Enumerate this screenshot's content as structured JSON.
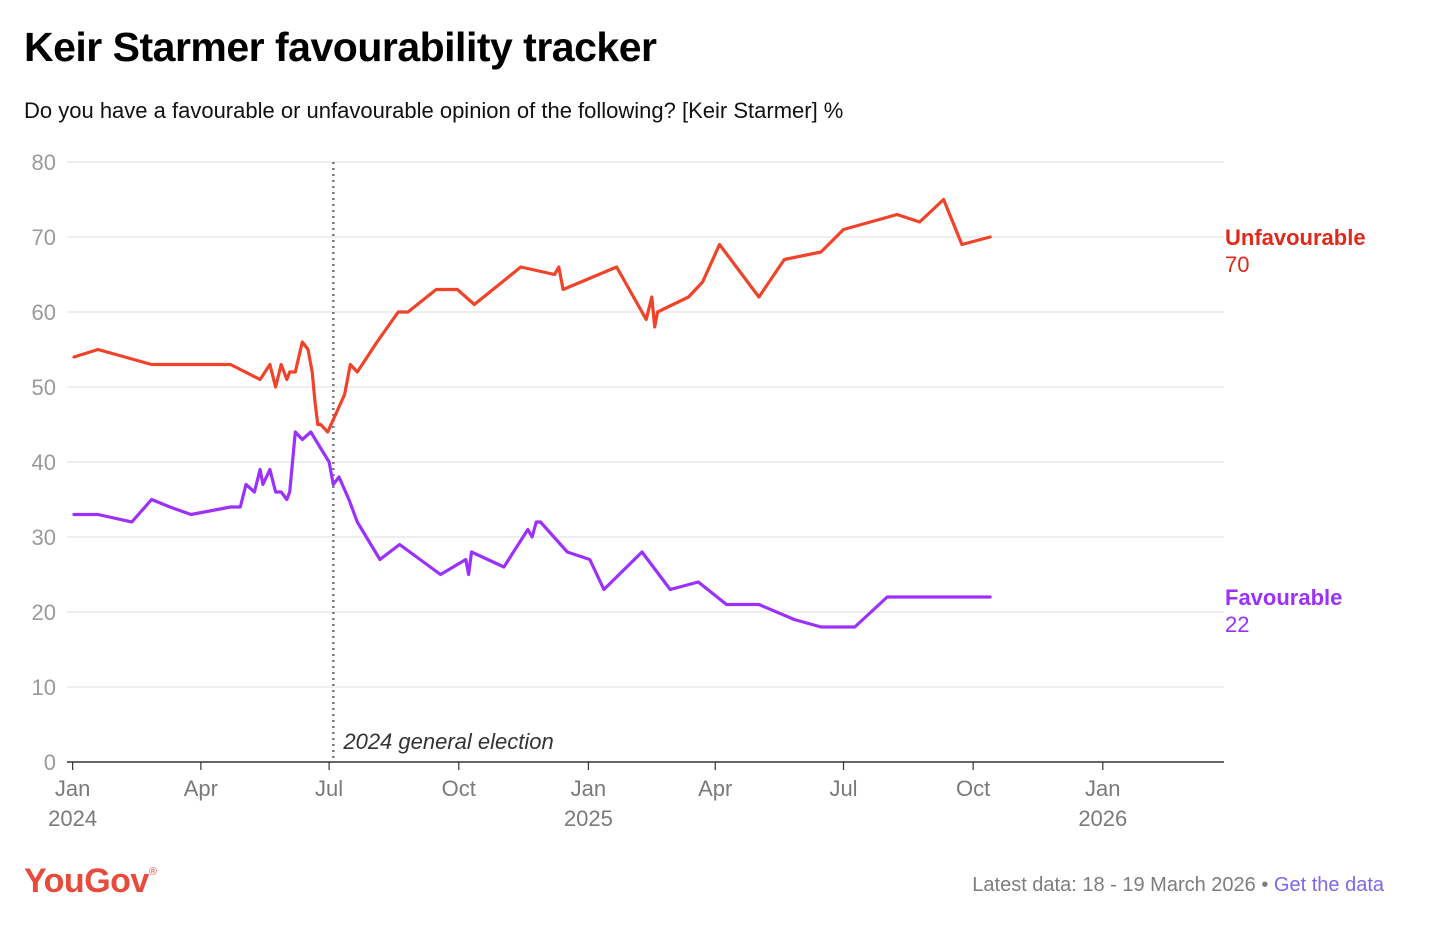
{
  "header": {
    "title": "Keir Starmer favourability tracker",
    "subtitle": "Do you have a favourable or unfavourable opinion of the following? [Keir Starmer] %"
  },
  "footer": {
    "logo": "YouGov",
    "logo_mark": "®",
    "latest_data": "Latest data: 18 - 19 March 2026",
    "separator": "•",
    "get_data_link": "Get the data"
  },
  "chart_data": {
    "type": "line",
    "title": "Keir Starmer favourability tracker",
    "xlabel": "",
    "ylabel": "%",
    "ylim": [
      0,
      80
    ],
    "xlim": [
      "2023-12-28",
      "2026-03-28"
    ],
    "yticks": [
      0,
      10,
      20,
      30,
      40,
      50,
      60,
      70,
      80
    ],
    "xticks": [
      {
        "date": "2024-01-01",
        "label": "Jan",
        "year": "2024"
      },
      {
        "date": "2024-04-01",
        "label": "Apr",
        "year": ""
      },
      {
        "date": "2024-07-01",
        "label": "Jul",
        "year": ""
      },
      {
        "date": "2024-10-01",
        "label": "Oct",
        "year": ""
      },
      {
        "date": "2025-01-01",
        "label": "Jan",
        "year": "2025"
      },
      {
        "date": "2025-04-01",
        "label": "Apr",
        "year": ""
      },
      {
        "date": "2025-07-01",
        "label": "Jul",
        "year": ""
      },
      {
        "date": "2025-10-01",
        "label": "Oct",
        "year": ""
      },
      {
        "date": "2026-01-01",
        "label": "Jan",
        "year": "2026"
      }
    ],
    "grid": true,
    "annotations": [
      {
        "date": "2024-07-04",
        "label": "2024 general election",
        "style": "dotted-vertical-line"
      }
    ],
    "colors": {
      "Unfavourable": "#f0432a",
      "Favourable": "#9b30ff",
      "end_label_unfav": "#e0281b"
    },
    "series": [
      {
        "name": "Unfavourable",
        "end_label": "Unfavourable",
        "end_value": "70",
        "points": [
          [
            "2024-01-02",
            54
          ],
          [
            "2024-01-19",
            55
          ],
          [
            "2024-02-26",
            53
          ],
          [
            "2024-03-25",
            53
          ],
          [
            "2024-04-22",
            53
          ],
          [
            "2024-05-13",
            51
          ],
          [
            "2024-05-20",
            53
          ],
          [
            "2024-05-24",
            50
          ],
          [
            "2024-05-28",
            53
          ],
          [
            "2024-06-01",
            51
          ],
          [
            "2024-06-03",
            52
          ],
          [
            "2024-06-07",
            52
          ],
          [
            "2024-06-12",
            56
          ],
          [
            "2024-06-16",
            55
          ],
          [
            "2024-06-17",
            54
          ],
          [
            "2024-06-19",
            52
          ],
          [
            "2024-06-21",
            48
          ],
          [
            "2024-06-23",
            45
          ],
          [
            "2024-06-25",
            45
          ],
          [
            "2024-06-30",
            44
          ],
          [
            "2024-07-12",
            49
          ],
          [
            "2024-07-16",
            53
          ],
          [
            "2024-07-21",
            52
          ],
          [
            "2024-08-04",
            56
          ],
          [
            "2024-08-19",
            60
          ],
          [
            "2024-08-26",
            60
          ],
          [
            "2024-09-15",
            63
          ],
          [
            "2024-09-30",
            63
          ],
          [
            "2024-10-12",
            61
          ],
          [
            "2024-11-14",
            66
          ],
          [
            "2024-12-08",
            65
          ],
          [
            "2024-12-11",
            66
          ],
          [
            "2024-12-14",
            63
          ],
          [
            "2025-01-21",
            66
          ],
          [
            "2025-02-11",
            59
          ],
          [
            "2025-02-15",
            62
          ],
          [
            "2025-02-17",
            58
          ],
          [
            "2025-02-19",
            60
          ],
          [
            "2025-03-13",
            62
          ],
          [
            "2025-03-23",
            64
          ],
          [
            "2025-04-04",
            69
          ],
          [
            "2025-05-02",
            62
          ],
          [
            "2025-05-20",
            67
          ],
          [
            "2025-06-15",
            68
          ],
          [
            "2025-07-01",
            71
          ],
          [
            "2025-08-08",
            73
          ],
          [
            "2025-08-24",
            72
          ],
          [
            "2025-09-10",
            75
          ],
          [
            "2025-09-23",
            69
          ],
          [
            "2025-10-13",
            70
          ]
        ]
      },
      {
        "name": "Favourable",
        "end_label": "Favourable",
        "end_value": "22",
        "points": [
          [
            "2024-01-02",
            33
          ],
          [
            "2024-01-19",
            33
          ],
          [
            "2024-02-12",
            32
          ],
          [
            "2024-02-26",
            35
          ],
          [
            "2024-03-10",
            34
          ],
          [
            "2024-03-25",
            33
          ],
          [
            "2024-04-22",
            34
          ],
          [
            "2024-04-29",
            34
          ],
          [
            "2024-05-03",
            37
          ],
          [
            "2024-05-09",
            36
          ],
          [
            "2024-05-13",
            39
          ],
          [
            "2024-05-15",
            37
          ],
          [
            "2024-05-20",
            39
          ],
          [
            "2024-05-24",
            36
          ],
          [
            "2024-05-28",
            36
          ],
          [
            "2024-06-01",
            35
          ],
          [
            "2024-06-03",
            36
          ],
          [
            "2024-06-07",
            44
          ],
          [
            "2024-06-12",
            43
          ],
          [
            "2024-06-18",
            44
          ],
          [
            "2024-07-01",
            40
          ],
          [
            "2024-07-04",
            37
          ],
          [
            "2024-07-08",
            38
          ],
          [
            "2024-07-15",
            35
          ],
          [
            "2024-07-21",
            32
          ],
          [
            "2024-08-06",
            27
          ],
          [
            "2024-08-20",
            29
          ],
          [
            "2024-09-18",
            25
          ],
          [
            "2024-10-06",
            27
          ],
          [
            "2024-10-08",
            25
          ],
          [
            "2024-10-10",
            28
          ],
          [
            "2024-11-02",
            26
          ],
          [
            "2024-11-19",
            31
          ],
          [
            "2024-11-22",
            30
          ],
          [
            "2024-11-25",
            32
          ],
          [
            "2024-11-28",
            32
          ],
          [
            "2024-12-17",
            28
          ],
          [
            "2025-01-02",
            27
          ],
          [
            "2025-01-12",
            23
          ],
          [
            "2025-02-08",
            28
          ],
          [
            "2025-02-28",
            23
          ],
          [
            "2025-03-20",
            24
          ],
          [
            "2025-04-09",
            21
          ],
          [
            "2025-05-02",
            21
          ],
          [
            "2025-05-27",
            19
          ],
          [
            "2025-06-15",
            18
          ],
          [
            "2025-07-09",
            18
          ],
          [
            "2025-08-01",
            22
          ],
          [
            "2025-08-19",
            22
          ],
          [
            "2025-10-13",
            22
          ]
        ]
      }
    ]
  }
}
